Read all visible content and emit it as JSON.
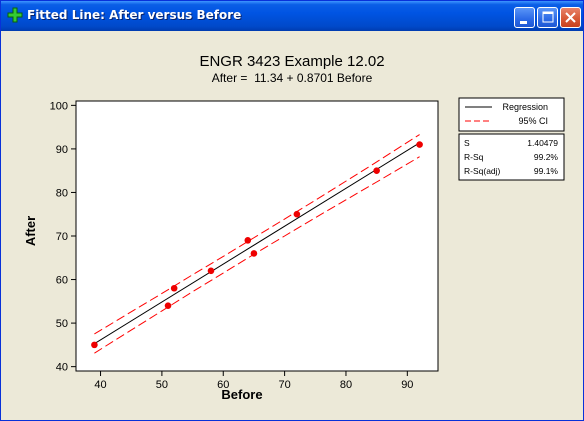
{
  "window": {
    "title": "Fitted Line: After versus Before",
    "colors": {
      "titlebar": "#0054E3",
      "client_bg": "#ECE9D8"
    }
  },
  "chart_data": {
    "type": "scatter",
    "title": "ENGR 3423 Example 12.02",
    "subtitle": "After =  11.34 + 0.8701 Before",
    "xlabel": "Before",
    "ylabel": "After",
    "xlim": [
      36,
      95
    ],
    "ylim": [
      39,
      101
    ],
    "xticks": [
      40,
      50,
      60,
      70,
      80,
      90
    ],
    "yticks": [
      40,
      50,
      60,
      70,
      80,
      90,
      100
    ],
    "grid": false,
    "points": [
      {
        "x": 39,
        "y": 45
      },
      {
        "x": 51,
        "y": 54
      },
      {
        "x": 52,
        "y": 58
      },
      {
        "x": 58,
        "y": 62
      },
      {
        "x": 64,
        "y": 69
      },
      {
        "x": 65,
        "y": 66
      },
      {
        "x": 72,
        "y": 75
      },
      {
        "x": 85,
        "y": 85
      },
      {
        "x": 92,
        "y": 91
      }
    ],
    "regression": {
      "intercept": 11.34,
      "slope": 0.8701,
      "x_range": [
        39,
        92
      ]
    },
    "ci": {
      "x": [
        39,
        45,
        50,
        55,
        60,
        65,
        70,
        75,
        80,
        85,
        92
      ],
      "upper": [
        47.5,
        52.6,
        56.8,
        61.1,
        65.3,
        69.6,
        73.9,
        78.2,
        82.6,
        87.0,
        93.3
      ],
      "lower": [
        43.1,
        48.4,
        52.8,
        57.2,
        61.5,
        65.8,
        70.0,
        74.2,
        78.3,
        82.4,
        88.2
      ]
    },
    "legend": {
      "placement": "right",
      "entries": [
        {
          "label": "Regression",
          "color": "#000000",
          "style": "solid"
        },
        {
          "label": "95% CI",
          "color": "#FF0000",
          "style": "dashed"
        }
      ]
    },
    "stats": [
      {
        "label": "S",
        "value": "1.40479"
      },
      {
        "label": "R-Sq",
        "value": "99.2%"
      },
      {
        "label": "R-Sq(adj)",
        "value": "99.1%"
      }
    ],
    "colors": {
      "points": "#EE0000",
      "regression": "#000000",
      "ci": "#FF0000"
    }
  }
}
